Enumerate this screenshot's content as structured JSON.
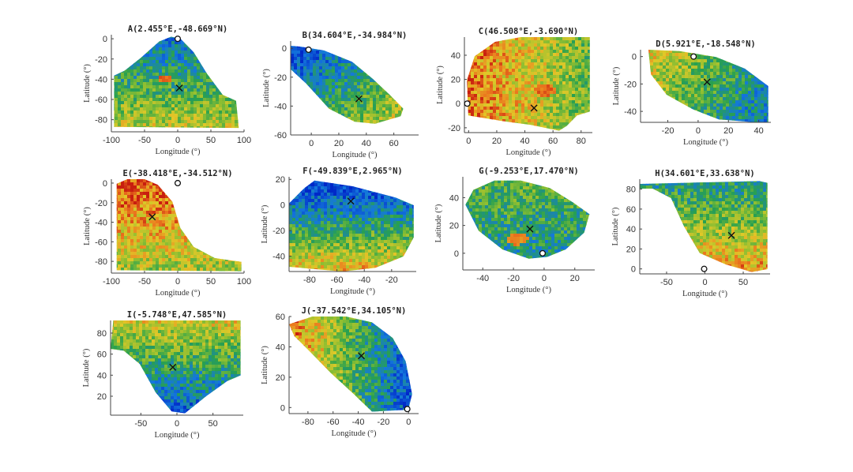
{
  "chart_data": [
    {
      "id": "A",
      "type": "scatter",
      "title": "A(2.455°E,-48.669°N)",
      "xlabel": "Longitude (°)",
      "ylabel": "Latitude (°)",
      "xlim": [
        -100,
        100
      ],
      "ylim": [
        -92,
        4
      ],
      "xticks": [
        -100,
        -50,
        0,
        50,
        100
      ],
      "yticks": [
        0,
        -20,
        -40,
        -60,
        -80
      ],
      "marker_x": [
        2.455,
        -48.669
      ],
      "marker_o": [
        0,
        0
      ],
      "colormap": "jet (blue-green-yellow-red)"
    },
    {
      "id": "B",
      "type": "scatter",
      "title": "B(34.604°E,-34.984°N)",
      "xlabel": "Longitude (°)",
      "ylabel": "Latitude (°)",
      "xlim": [
        -15,
        78
      ],
      "ylim": [
        -60,
        5
      ],
      "xticks": [
        0,
        20,
        40,
        60
      ],
      "yticks": [
        0,
        -20,
        -40,
        -60
      ],
      "marker_x": [
        34.604,
        -34.984
      ],
      "marker_o": [
        -2,
        -1
      ],
      "colormap": "jet (blue-green-yellow-red)"
    },
    {
      "id": "C",
      "type": "scatter",
      "title": "C(46.508°E,-3.690°N)",
      "xlabel": "Longitude (°)",
      "ylabel": "Latitude (°)",
      "xlim": [
        -3,
        88
      ],
      "ylim": [
        -24,
        55
      ],
      "xticks": [
        0,
        20,
        40,
        60,
        80
      ],
      "yticks": [
        40,
        20,
        0,
        -20
      ],
      "marker_x": [
        46.508,
        -3.69
      ],
      "marker_o": [
        -1,
        0
      ],
      "colormap": "jet (blue-green-yellow-red)"
    },
    {
      "id": "D",
      "type": "scatter",
      "title": "D(5.921°E,-18.548°N)",
      "xlabel": "Longitude (°)",
      "ylabel": "Latitude (°)",
      "xlim": [
        -38,
        48
      ],
      "ylim": [
        -48,
        5
      ],
      "xticks": [
        -20,
        0,
        20,
        40
      ],
      "yticks": [
        0,
        -20,
        -40
      ],
      "marker_x": [
        5.921,
        -18.548
      ],
      "marker_o": [
        -3,
        0
      ],
      "colormap": "jet (blue-green-yellow-red)"
    },
    {
      "id": "E",
      "type": "scatter",
      "title": "E(-38.418°E,-34.512°N)",
      "xlabel": "Longitude (°)",
      "ylabel": "Latitude (°)",
      "xlim": [
        -100,
        100
      ],
      "ylim": [
        -92,
        4
      ],
      "xticks": [
        -100,
        -50,
        0,
        50,
        100
      ],
      "yticks": [
        0,
        -20,
        -40,
        -60,
        -80
      ],
      "marker_x": [
        -38.418,
        -34.512
      ],
      "marker_o": [
        0,
        0
      ],
      "colormap": "jet (blue-green-yellow-red)"
    },
    {
      "id": "F",
      "type": "scatter",
      "title": "F(-49.839°E,2.965°N)",
      "xlabel": "Longitude (°)",
      "ylabel": "Latitude (°)",
      "xlim": [
        -95,
        -2
      ],
      "ylim": [
        -52,
        22
      ],
      "xticks": [
        -80,
        -60,
        -40,
        -20
      ],
      "yticks": [
        20,
        0,
        -20,
        -40
      ],
      "marker_x": [
        -49.839,
        2.965
      ],
      "marker_o": null,
      "colormap": "jet (blue-green-yellow-red)"
    },
    {
      "id": "G",
      "type": "scatter",
      "title": "G(-9.253°E,17.470°N)",
      "xlabel": "Longitude (°)",
      "ylabel": "Latitude (°)",
      "xlim": [
        -53,
        33
      ],
      "ylim": [
        -12,
        55
      ],
      "xticks": [
        -40,
        -20,
        0,
        20
      ],
      "yticks": [
        40,
        20,
        0
      ],
      "marker_x": [
        -9.253,
        17.47
      ],
      "marker_o": [
        -1,
        0
      ],
      "colormap": "jet (blue-green-yellow-red)"
    },
    {
      "id": "H",
      "type": "scatter",
      "title": "H(34.601°E,33.638°N)",
      "xlabel": "Longitude (°)",
      "ylabel": "Latitude (°)",
      "xlim": [
        -85,
        85
      ],
      "ylim": [
        -5,
        90
      ],
      "xticks": [
        -50,
        0,
        50
      ],
      "yticks": [
        80,
        60,
        40,
        20,
        0
      ],
      "marker_x": [
        34.601,
        33.638
      ],
      "marker_o": [
        -1,
        0
      ],
      "colormap": "jet (blue-green-yellow-red)"
    },
    {
      "id": "I",
      "type": "scatter",
      "title": "I(-5.748°E,47.585°N)",
      "xlabel": "Longitude (°)",
      "ylabel": "Latitude (°)",
      "xlim": [
        -92,
        92
      ],
      "ylim": [
        2,
        92
      ],
      "xticks": [
        -50,
        0,
        50
      ],
      "yticks": [
        80,
        60,
        40,
        20
      ],
      "marker_x": [
        -5.748,
        47.585
      ],
      "marker_o": null,
      "colormap": "jet (blue-green-yellow-red)"
    },
    {
      "id": "J",
      "type": "scatter",
      "title": "J(-37.542°E,34.105°N)",
      "xlabel": "Longitude (°)",
      "ylabel": "Latitude (°)",
      "xlim": [
        -95,
        8
      ],
      "ylim": [
        -4,
        60
      ],
      "xticks": [
        -80,
        -60,
        -40,
        -20,
        0
      ],
      "yticks": [
        60,
        40,
        20,
        0
      ],
      "marker_x": [
        -37.542,
        34.105
      ],
      "marker_o": [
        -1,
        -1
      ],
      "colormap": "jet (blue-green-yellow-red)"
    }
  ]
}
